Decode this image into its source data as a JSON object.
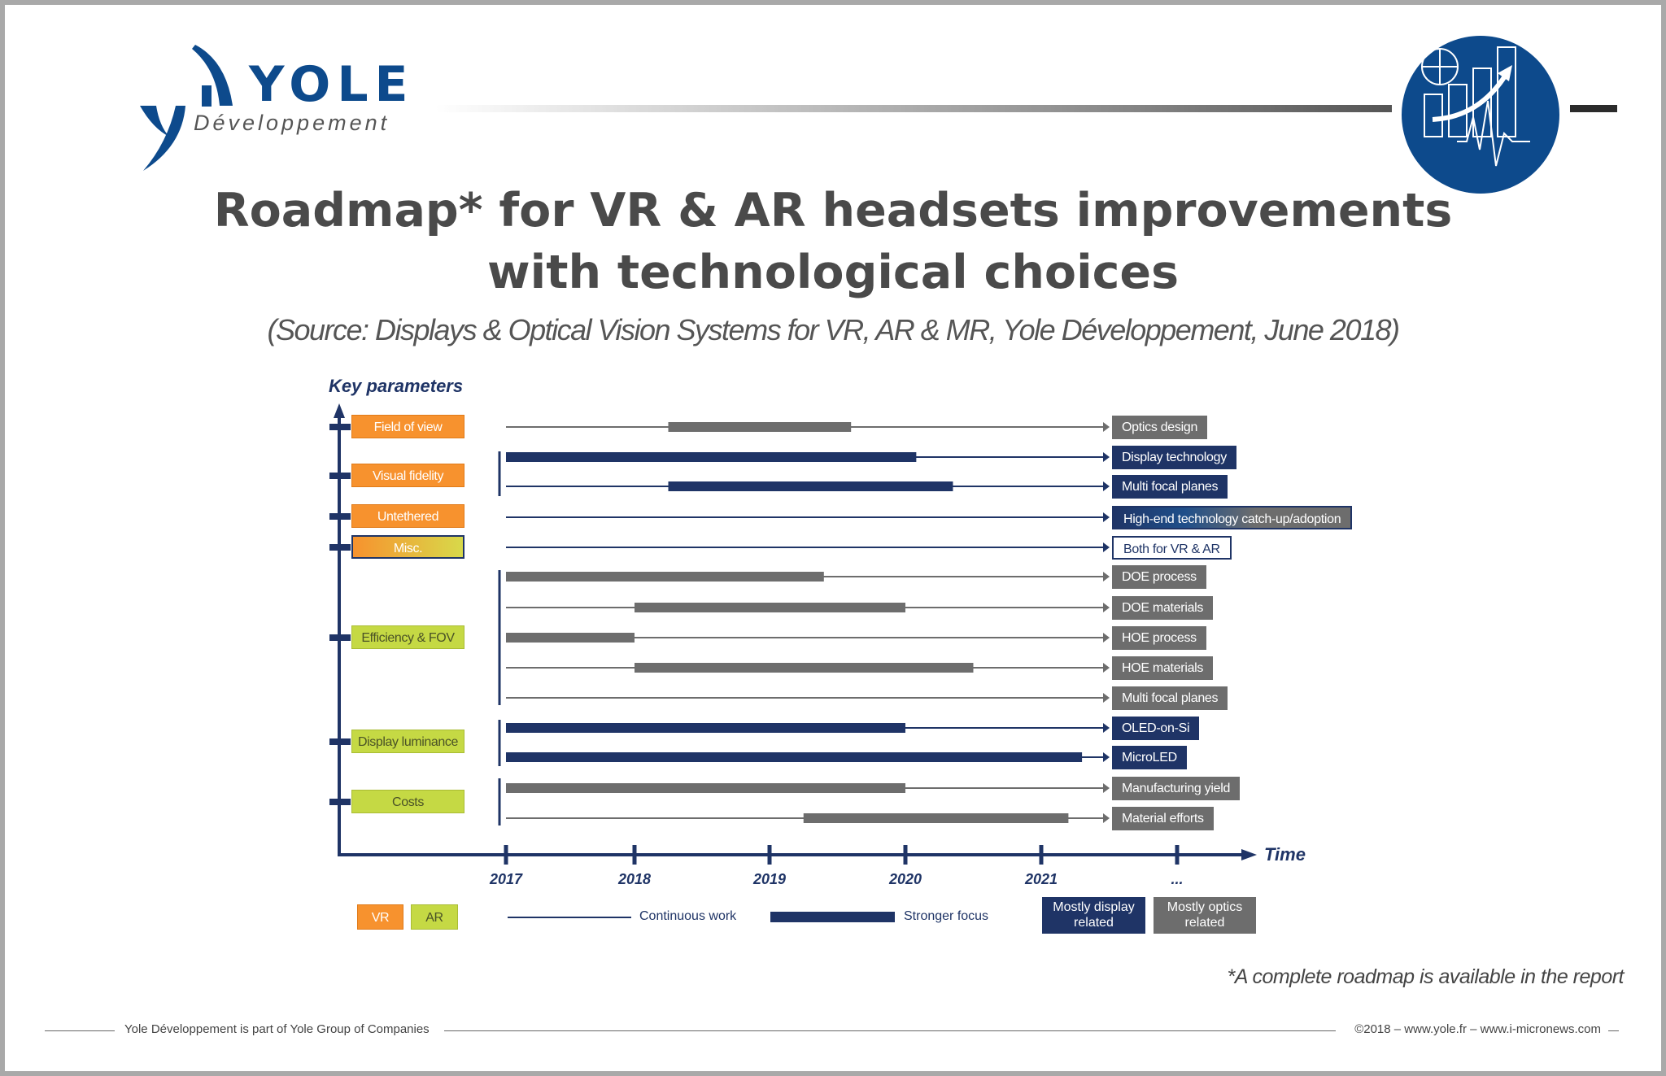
{
  "logo": {
    "brand": "YOLE",
    "sub": "Développement"
  },
  "title": {
    "line1": "Roadmap* for VR & AR headsets improvements",
    "line2": "with technological choices"
  },
  "source": "(Source: Displays & Optical Vision Systems for VR, AR & MR, Yole Développement, June 2018)",
  "colors": {
    "orange": "#f7922e",
    "green": "#c5d944",
    "navy": "#1f3466",
    "gray": "#6d6d6d",
    "brand_blue": "#0d4a8c"
  },
  "chart_data": {
    "type": "roadmap",
    "y_axis_label": "Key parameters",
    "x_axis_label": "Time",
    "x_ticks": [
      "2017",
      "2018",
      "2019",
      "2020",
      "2021",
      "..."
    ],
    "parameters": [
      {
        "label": "Field of view",
        "kind": "vr"
      },
      {
        "label": "Visual fidelity",
        "kind": "vr"
      },
      {
        "label": "Untethered",
        "kind": "vr"
      },
      {
        "label": "Misc.",
        "kind": "misc"
      },
      {
        "label": "Efficiency & FOV",
        "kind": "ar"
      },
      {
        "label": "Display luminance",
        "kind": "ar"
      },
      {
        "label": "Costs",
        "kind": "ar"
      }
    ],
    "rows": [
      {
        "label": "Optics design",
        "style": "gray",
        "focus": [
          2018.25,
          2019.6
        ]
      },
      {
        "label": "Display technology",
        "style": "navy",
        "focus": [
          2017,
          2020.08
        ]
      },
      {
        "label": "Multi focal planes",
        "style": "navy",
        "focus": [
          2018.25,
          2020.35
        ]
      },
      {
        "label": "High-end technology catch-up/adoption",
        "style": "grad",
        "focus": null
      },
      {
        "label": "Both for VR & AR",
        "style": "white",
        "focus": null
      },
      {
        "label": "DOE process",
        "style": "gray",
        "focus": [
          2017,
          2019.4
        ]
      },
      {
        "label": "DOE materials",
        "style": "gray",
        "focus": [
          2018,
          2020
        ]
      },
      {
        "label": "HOE process",
        "style": "gray",
        "focus": [
          2017,
          2018
        ]
      },
      {
        "label": "HOE materials",
        "style": "gray",
        "focus": [
          2018,
          2020.5
        ]
      },
      {
        "label": "Multi focal planes",
        "style": "gray",
        "focus": null
      },
      {
        "label": "OLED-on-Si",
        "style": "navy",
        "focus": [
          2017,
          2020
        ]
      },
      {
        "label": "MicroLED",
        "style": "navy",
        "focus": [
          2017,
          2021.3
        ]
      },
      {
        "label": "Manufacturing yield",
        "style": "gray",
        "focus": [
          2017,
          2020
        ]
      },
      {
        "label": "Material efforts",
        "style": "gray",
        "focus": [
          2019.25,
          2021.2
        ]
      }
    ]
  },
  "legend": {
    "vr": "VR",
    "ar": "AR",
    "continuous": "Continuous work",
    "stronger": "Stronger focus",
    "display_line1": "Mostly display",
    "display_line2": "related",
    "optics_line1": "Mostly optics",
    "optics_line2": "related"
  },
  "footnote": "*A complete roadmap is available in the report",
  "footer": {
    "left": "Yole Développement is part of Yole Group of Companies",
    "right": "©2018 – www.yole.fr – www.i-micronews.com"
  }
}
